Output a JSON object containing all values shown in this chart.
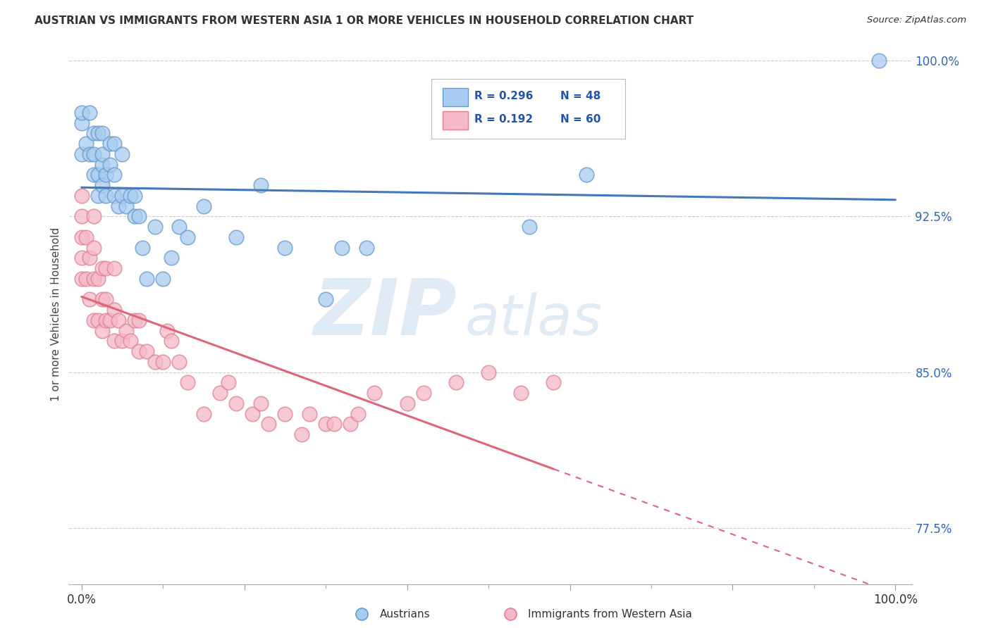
{
  "title": "AUSTRIAN VS IMMIGRANTS FROM WESTERN ASIA 1 OR MORE VEHICLES IN HOUSEHOLD CORRELATION CHART",
  "source": "Source: ZipAtlas.com",
  "ylabel": "1 or more Vehicles in Household",
  "ytick_labels": [
    "77.5%",
    "85.0%",
    "92.5%",
    "100.0%"
  ],
  "yticks": [
    0.775,
    0.85,
    0.925,
    1.0
  ],
  "xtick_labels": [
    "0.0%",
    "",
    "",
    "",
    "",
    "100.0%"
  ],
  "xticks": [
    0.0,
    0.2,
    0.4,
    0.6,
    0.8,
    1.0
  ],
  "legend_r1": "R = 0.296",
  "legend_n1": "N = 48",
  "legend_r2": "R = 0.192",
  "legend_n2": "N = 60",
  "color_aus_fill": "#A8CCF0",
  "color_aus_edge": "#6699CC",
  "color_imm_fill": "#F5B8C8",
  "color_imm_edge": "#E08090",
  "color_line_aus": "#4477BB",
  "color_line_imm": "#DD6677",
  "watermark_zip": "ZIP",
  "watermark_atlas": "atlas",
  "legend_label_1": "Austrians",
  "legend_label_2": "Immigrants from Western Asia",
  "aus_x": [
    0.0,
    0.0,
    0.0,
    0.005,
    0.01,
    0.01,
    0.015,
    0.015,
    0.015,
    0.02,
    0.02,
    0.02,
    0.025,
    0.025,
    0.025,
    0.025,
    0.03,
    0.03,
    0.035,
    0.035,
    0.04,
    0.04,
    0.04,
    0.045,
    0.05,
    0.05,
    0.055,
    0.06,
    0.065,
    0.065,
    0.07,
    0.075,
    0.08,
    0.09,
    0.1,
    0.11,
    0.12,
    0.13,
    0.15,
    0.19,
    0.22,
    0.25,
    0.3,
    0.32,
    0.35,
    0.55,
    0.62,
    0.98
  ],
  "aus_y": [
    0.955,
    0.97,
    0.975,
    0.96,
    0.955,
    0.975,
    0.945,
    0.955,
    0.965,
    0.935,
    0.945,
    0.965,
    0.94,
    0.95,
    0.955,
    0.965,
    0.935,
    0.945,
    0.95,
    0.96,
    0.935,
    0.945,
    0.96,
    0.93,
    0.935,
    0.955,
    0.93,
    0.935,
    0.925,
    0.935,
    0.925,
    0.91,
    0.895,
    0.92,
    0.895,
    0.905,
    0.92,
    0.915,
    0.93,
    0.915,
    0.94,
    0.91,
    0.885,
    0.91,
    0.91,
    0.92,
    0.945,
    1.0
  ],
  "imm_x": [
    0.0,
    0.0,
    0.0,
    0.0,
    0.0,
    0.005,
    0.005,
    0.01,
    0.01,
    0.015,
    0.015,
    0.015,
    0.015,
    0.02,
    0.02,
    0.025,
    0.025,
    0.025,
    0.03,
    0.03,
    0.03,
    0.035,
    0.04,
    0.04,
    0.04,
    0.045,
    0.05,
    0.055,
    0.06,
    0.065,
    0.07,
    0.07,
    0.08,
    0.09,
    0.1,
    0.105,
    0.11,
    0.12,
    0.13,
    0.15,
    0.17,
    0.19,
    0.21,
    0.23,
    0.27,
    0.3,
    0.33,
    0.36,
    0.4,
    0.42,
    0.46,
    0.5,
    0.54,
    0.58,
    0.18,
    0.22,
    0.25,
    0.28,
    0.31,
    0.34
  ],
  "imm_y": [
    0.895,
    0.905,
    0.915,
    0.925,
    0.935,
    0.895,
    0.915,
    0.885,
    0.905,
    0.875,
    0.895,
    0.91,
    0.925,
    0.875,
    0.895,
    0.87,
    0.885,
    0.9,
    0.875,
    0.885,
    0.9,
    0.875,
    0.865,
    0.88,
    0.9,
    0.875,
    0.865,
    0.87,
    0.865,
    0.875,
    0.86,
    0.875,
    0.86,
    0.855,
    0.855,
    0.87,
    0.865,
    0.855,
    0.845,
    0.83,
    0.84,
    0.835,
    0.83,
    0.825,
    0.82,
    0.825,
    0.825,
    0.84,
    0.835,
    0.84,
    0.845,
    0.85,
    0.84,
    0.845,
    0.845,
    0.835,
    0.83,
    0.83,
    0.825,
    0.83
  ],
  "xlim": [
    -0.015,
    1.02
  ],
  "ylim": [
    0.748,
    1.008
  ]
}
